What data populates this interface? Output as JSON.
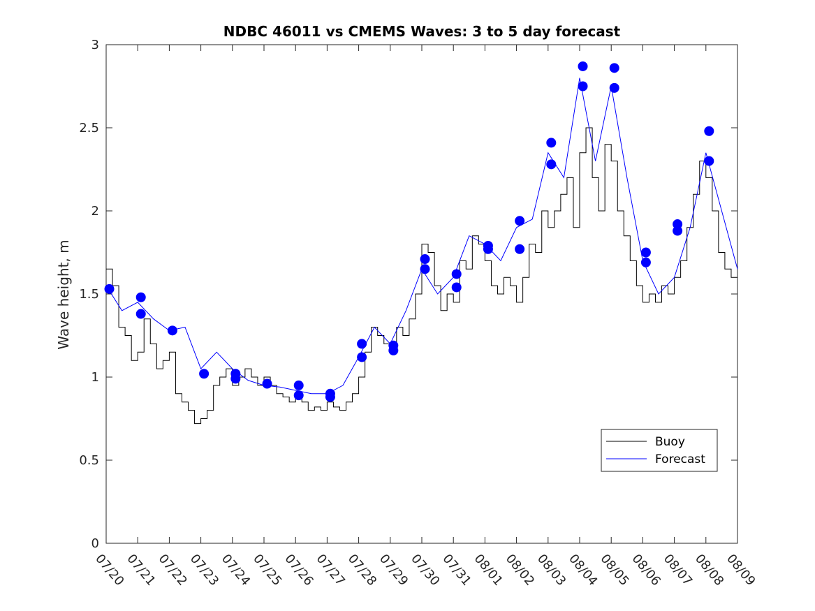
{
  "chart_data": {
    "type": "line",
    "title": "NDBC 46011 vs CMEMS Waves: 3 to 5 day forecast",
    "xlabel": "",
    "ylabel": "Wave height, m",
    "x_ticks": [
      "07/20",
      "07/21",
      "07/22",
      "07/23",
      "07/24",
      "07/25",
      "07/26",
      "07/27",
      "07/28",
      "07/29",
      "07/30",
      "07/31",
      "08/01",
      "08/02",
      "08/03",
      "08/04",
      "08/05",
      "08/06",
      "08/07",
      "08/08",
      "08/09"
    ],
    "ylim": [
      0,
      3
    ],
    "y_ticks": [
      "0",
      "0.5",
      "1",
      "1.5",
      "2",
      "2.5",
      "3"
    ],
    "legend": {
      "position": "bottom-right",
      "entries": [
        "Buoy",
        "Forecast"
      ]
    },
    "colors": {
      "buoy": "#000000",
      "forecast": "#0000ff"
    },
    "series": [
      {
        "name": "Buoy",
        "x": [
          0,
          0.2,
          0.4,
          0.6,
          0.8,
          1.0,
          1.2,
          1.4,
          1.6,
          1.8,
          2.0,
          2.2,
          2.4,
          2.6,
          2.8,
          3.0,
          3.2,
          3.4,
          3.6,
          3.8,
          4.0,
          4.2,
          4.4,
          4.6,
          4.8,
          5.0,
          5.2,
          5.4,
          5.6,
          5.8,
          6.0,
          6.2,
          6.4,
          6.6,
          6.8,
          7.0,
          7.2,
          7.4,
          7.6,
          7.8,
          8.0,
          8.2,
          8.4,
          8.6,
          8.8,
          9.0,
          9.2,
          9.4,
          9.6,
          9.8,
          10.0,
          10.2,
          10.4,
          10.6,
          10.8,
          11.0,
          11.2,
          11.4,
          11.6,
          11.8,
          12.0,
          12.2,
          12.4,
          12.6,
          12.8,
          13.0,
          13.2,
          13.4,
          13.6,
          13.8,
          14.0,
          14.2,
          14.4,
          14.6,
          14.8,
          15.0,
          15.2,
          15.4,
          15.6,
          15.8,
          16.0,
          16.2,
          16.4,
          16.6,
          16.8,
          17.0,
          17.2,
          17.4,
          17.6,
          17.8,
          18.0,
          18.2,
          18.4,
          18.6,
          18.8,
          19.0,
          19.2,
          19.4,
          19.6,
          19.8,
          20.0
        ],
        "values": [
          1.65,
          1.55,
          1.3,
          1.25,
          1.1,
          1.15,
          1.35,
          1.2,
          1.05,
          1.1,
          1.15,
          0.9,
          0.85,
          0.8,
          0.72,
          0.75,
          0.8,
          0.95,
          1.0,
          1.05,
          0.95,
          1.0,
          1.05,
          1.0,
          0.95,
          1.0,
          0.95,
          0.9,
          0.88,
          0.85,
          0.9,
          0.85,
          0.8,
          0.82,
          0.8,
          0.85,
          0.82,
          0.8,
          0.85,
          0.9,
          1.0,
          1.15,
          1.3,
          1.25,
          1.2,
          1.15,
          1.3,
          1.25,
          1.35,
          1.5,
          1.8,
          1.75,
          1.55,
          1.4,
          1.5,
          1.45,
          1.7,
          1.65,
          1.85,
          1.8,
          1.7,
          1.55,
          1.5,
          1.6,
          1.55,
          1.45,
          1.6,
          1.8,
          1.75,
          2.0,
          1.9,
          2.0,
          2.1,
          2.2,
          1.9,
          2.35,
          2.5,
          2.2,
          2.0,
          2.4,
          2.3,
          2.0,
          1.85,
          1.7,
          1.55,
          1.45,
          1.5,
          1.45,
          1.55,
          1.5,
          1.6,
          1.7,
          1.9,
          2.1,
          2.3,
          2.2,
          2.0,
          1.75,
          1.65,
          1.6,
          1.6
        ]
      },
      {
        "name": "Forecast",
        "x": [
          0,
          0.5,
          1.0,
          1.5,
          2.0,
          2.5,
          3.0,
          3.5,
          4.0,
          4.5,
          5.0,
          5.5,
          6.0,
          6.5,
          7.0,
          7.5,
          8.0,
          8.5,
          9.0,
          9.5,
          10.0,
          10.5,
          11.0,
          11.5,
          12.0,
          12.5,
          13.0,
          13.5,
          14.0,
          14.5,
          15.0,
          15.5,
          16.0,
          16.5,
          17.0,
          17.5,
          18.0,
          18.5,
          19.0,
          19.5,
          20.0
        ],
        "values": [
          1.55,
          1.4,
          1.45,
          1.35,
          1.28,
          1.3,
          1.05,
          1.15,
          1.05,
          0.98,
          0.95,
          0.94,
          0.92,
          0.9,
          0.9,
          0.95,
          1.12,
          1.3,
          1.2,
          1.4,
          1.65,
          1.5,
          1.6,
          1.85,
          1.8,
          1.7,
          1.9,
          1.95,
          2.35,
          2.2,
          2.8,
          2.3,
          2.75,
          2.2,
          1.7,
          1.5,
          1.6,
          1.9,
          2.35,
          2.0,
          1.65
        ]
      }
    ],
    "forecast_markers": {
      "x": [
        0.1,
        1.1,
        1.1,
        2.1,
        3.1,
        4.1,
        4.1,
        5.1,
        6.1,
        6.1,
        7.1,
        7.1,
        8.1,
        8.1,
        9.1,
        9.1,
        10.1,
        10.1,
        11.1,
        11.1,
        12.1,
        12.1,
        13.1,
        13.1,
        14.1,
        14.1,
        15.1,
        15.1,
        16.1,
        16.1,
        17.1,
        17.1,
        18.1,
        18.1,
        19.1,
        19.1
      ],
      "values": [
        1.53,
        1.48,
        1.38,
        1.28,
        1.02,
        1.02,
        0.99,
        0.96,
        0.95,
        0.89,
        0.9,
        0.88,
        1.2,
        1.12,
        1.19,
        1.16,
        1.71,
        1.65,
        1.62,
        1.54,
        1.79,
        1.77,
        1.94,
        1.77,
        2.41,
        2.28,
        2.87,
        2.75,
        2.86,
        2.74,
        1.75,
        1.69,
        1.92,
        1.88,
        2.48,
        2.3
      ]
    }
  }
}
